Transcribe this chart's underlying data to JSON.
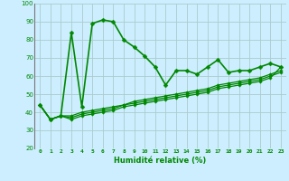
{
  "xlabel": "Humidité relative (%)",
  "xlim": [
    -0.5,
    23.5
  ],
  "ylim": [
    20,
    100
  ],
  "xticks": [
    0,
    1,
    2,
    3,
    4,
    5,
    6,
    7,
    8,
    9,
    10,
    11,
    12,
    13,
    14,
    15,
    16,
    17,
    18,
    19,
    20,
    21,
    22,
    23
  ],
  "yticks": [
    20,
    30,
    40,
    50,
    60,
    70,
    80,
    90,
    100
  ],
  "bg_color": "#cceeff",
  "grid_color": "#aacccc",
  "line_color": "#008800",
  "series": [
    [
      44,
      36,
      38,
      84,
      43,
      89,
      91,
      90,
      80,
      76,
      71,
      65,
      55,
      63,
      63,
      61,
      65,
      69,
      62,
      63,
      63,
      65,
      67,
      65
    ],
    [
      44,
      36,
      38,
      38,
      40,
      41,
      42,
      43,
      44,
      46,
      47,
      48,
      49,
      50,
      51,
      52,
      53,
      55,
      56,
      57,
      58,
      59,
      61,
      63
    ],
    [
      44,
      36,
      38,
      37,
      39,
      40,
      41,
      42,
      44,
      45,
      46,
      47,
      48,
      49,
      50,
      51,
      52,
      54,
      55,
      56,
      57,
      58,
      60,
      62
    ],
    [
      44,
      36,
      38,
      36,
      38,
      39,
      40,
      41,
      43,
      44,
      45,
      46,
      47,
      48,
      49,
      50,
      51,
      53,
      54,
      55,
      56,
      57,
      59,
      65
    ]
  ],
  "linewidths": [
    1.2,
    0.9,
    0.9,
    0.9
  ],
  "markersizes": [
    2.5,
    1.8,
    1.8,
    1.8
  ]
}
